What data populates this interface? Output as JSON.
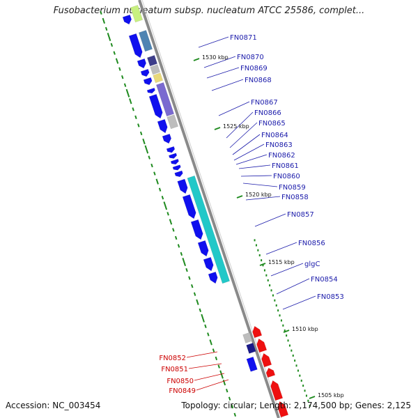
{
  "title": "Fusobacterium nucleatum subsp. nucleatum ATCC 25586, complet...",
  "accession": "Accession: NC_003454",
  "summary": "Topology: circular; Length: 2,174,500 bp; Genes: 2,125",
  "colors": {
    "forward": "#1010ee",
    "reverse": "#ee1010",
    "backbone": "#8a8a8a",
    "gc_ticks": "#1e8a1e",
    "blue_label": "#1a1aaa",
    "red_label": "#cc0000",
    "cyan": "#22c8c8",
    "steel": "#4f84b2",
    "navy": "#3d3d8a",
    "gray": "#bdbdbd",
    "khaki": "#e8d87a",
    "violet": "#7a6ad0",
    "pink": "#f0a0c0",
    "lime": "#c8f080"
  },
  "kbp_labels": [
    "1530 kbp",
    "1525 kbp",
    "1520 kbp",
    "1515 kbp",
    "1510 kbp",
    "1505 kbp"
  ],
  "forward_genes": [
    "FN0871",
    "FN0870",
    "FN0869",
    "FN0868",
    "FN0867",
    "FN0866",
    "FN0865",
    "FN0864",
    "FN0863",
    "FN0862",
    "FN0861",
    "FN0860",
    "FN0859",
    "FN0858",
    "FN0857",
    "FN0856",
    "glgC",
    "FN0854",
    "FN0853"
  ],
  "reverse_genes": [
    "FN0852",
    "FN0851",
    "FN0850",
    "FN0849"
  ]
}
